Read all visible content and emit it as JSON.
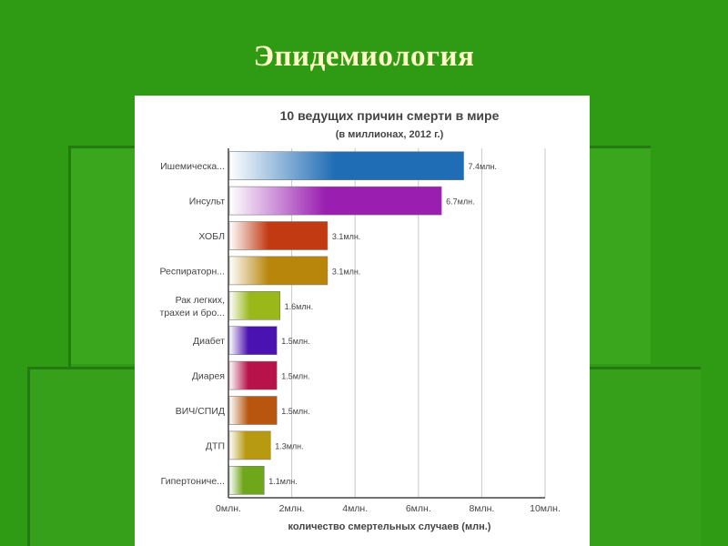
{
  "slide": {
    "title": "Эпидемиология"
  },
  "chart_data": {
    "type": "bar",
    "orientation": "horizontal",
    "title": "10 ведущих причин смерти в мире",
    "subtitle": "(в миллионах, 2012 г.)",
    "xlabel": "количество смертельных случаев (млн.)",
    "xlim": [
      0,
      10
    ],
    "xticks": [
      "0млн.",
      "2млн.",
      "4млн.",
      "6млн.",
      "8млн.",
      "10млн."
    ],
    "grid": true,
    "categories": [
      [
        "Ишемическа..."
      ],
      [
        "Инсульт"
      ],
      [
        "ХОБЛ"
      ],
      [
        "Респираторн..."
      ],
      [
        "Рак легких,",
        "трахеи и бро..."
      ],
      [
        "Диабет"
      ],
      [
        "Диарея"
      ],
      [
        "ВИЧ/СПИД"
      ],
      [
        "ДТП"
      ],
      [
        "Гипертониче..."
      ]
    ],
    "values": [
      7.4,
      6.7,
      3.1,
      3.1,
      1.6,
      1.5,
      1.5,
      1.5,
      1.3,
      1.1
    ],
    "value_labels": [
      "7.4млн.",
      "6.7млн.",
      "3.1млн.",
      "3.1млн.",
      "1.6млн.",
      "1.5млн.",
      "1.5млн.",
      "1.5млн.",
      "1.3млн.",
      "1.1млн."
    ],
    "colors": [
      "#1f6db5",
      "#9a1fb0",
      "#c23a12",
      "#b8860b",
      "#9ab81a",
      "#4a12b0",
      "#b8124a",
      "#b8560f",
      "#b89a12",
      "#6ea81a"
    ]
  }
}
